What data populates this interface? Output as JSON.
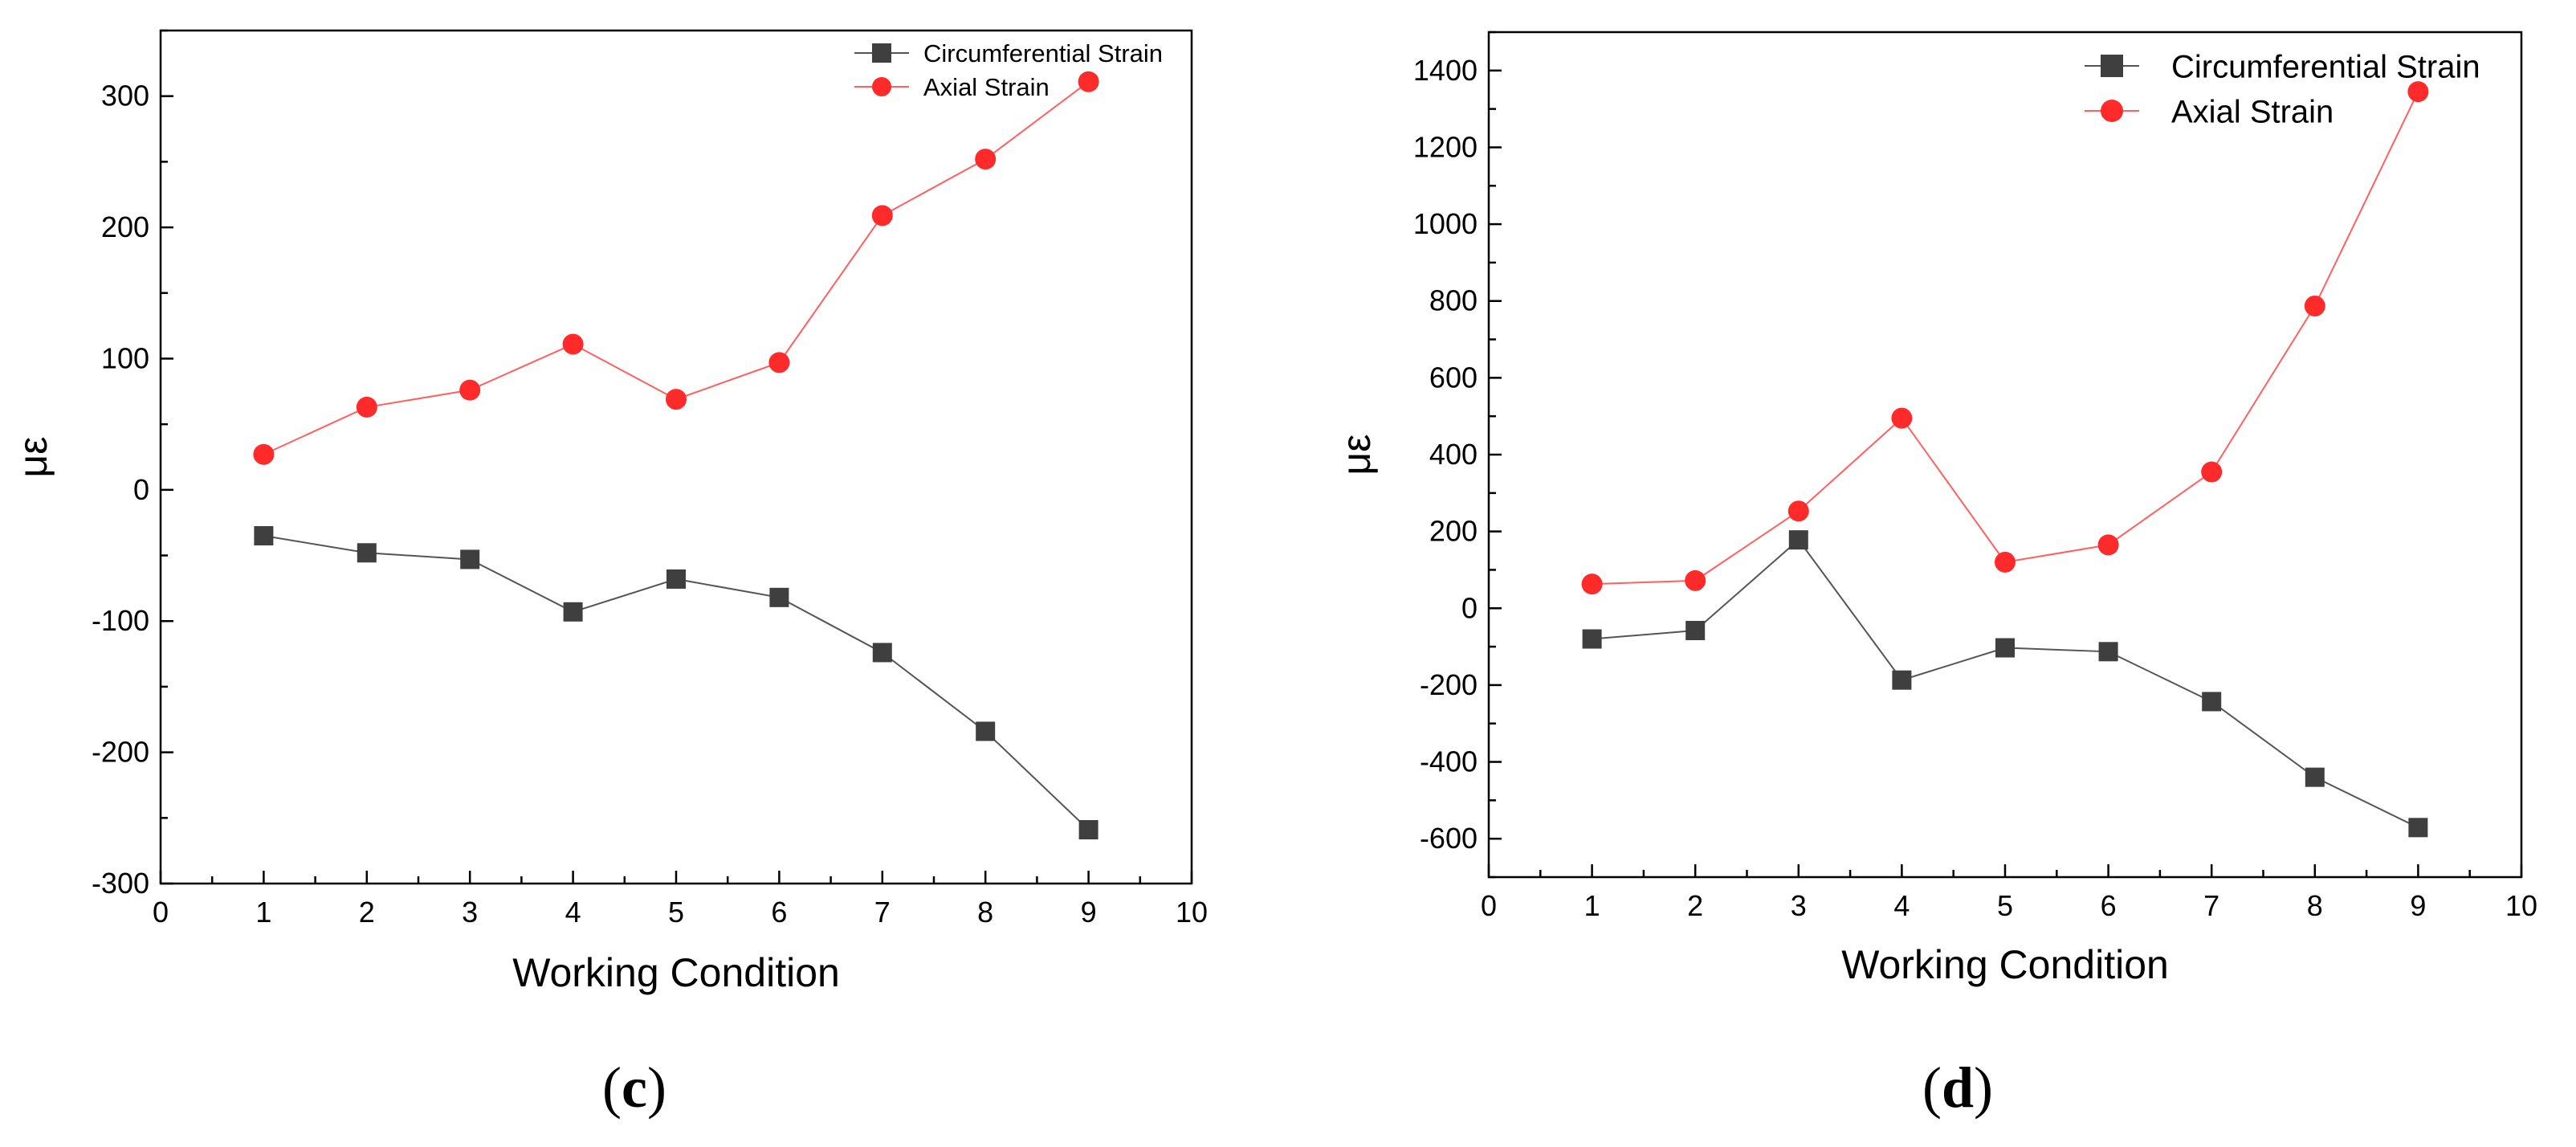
{
  "chart_data": [
    {
      "type": "line",
      "panel_label": "c",
      "xlabel": "Working Condition",
      "ylabel": "με",
      "xlim": [
        0,
        10
      ],
      "ylim": [
        -300,
        350
      ],
      "xticks": [
        0,
        1,
        2,
        3,
        4,
        5,
        6,
        7,
        8,
        9,
        10
      ],
      "yticks": [
        -300,
        -200,
        -100,
        0,
        100,
        200,
        300
      ],
      "legend_position": "top-right",
      "x": [
        1,
        2,
        3,
        4,
        5,
        6,
        7,
        8,
        9
      ],
      "series": [
        {
          "name": "Circumferential Strain",
          "marker": "square",
          "color": "#3f3f3f",
          "values": [
            -35,
            -48,
            -53,
            -93,
            -68,
            -82,
            -124,
            -184,
            -259
          ]
        },
        {
          "name": "Axial Strain",
          "marker": "circle",
          "color": "#ff2a2a",
          "values": [
            27,
            63,
            76,
            111,
            69,
            97,
            209,
            252,
            311
          ]
        }
      ]
    },
    {
      "type": "line",
      "panel_label": "d",
      "xlabel": "Working Condition",
      "ylabel": "με",
      "xlim": [
        0,
        10
      ],
      "ylim": [
        -700,
        1500
      ],
      "xticks": [
        0,
        1,
        2,
        3,
        4,
        5,
        6,
        7,
        8,
        9,
        10
      ],
      "yticks": [
        -600,
        -400,
        -200,
        0,
        200,
        400,
        600,
        800,
        1000,
        1200,
        1400
      ],
      "legend_position": "top-right",
      "x": [
        1,
        2,
        3,
        4,
        5,
        6,
        7,
        8,
        9
      ],
      "series": [
        {
          "name": "Circumferential Strain",
          "marker": "square",
          "color": "#3f3f3f",
          "values": [
            -80,
            -58,
            178,
            -187,
            -103,
            -113,
            -243,
            -440,
            -571
          ]
        },
        {
          "name": "Axial Strain",
          "marker": "circle",
          "color": "#ff2a2a",
          "values": [
            63,
            72,
            253,
            495,
            120,
            165,
            355,
            787,
            1345
          ]
        }
      ]
    }
  ]
}
